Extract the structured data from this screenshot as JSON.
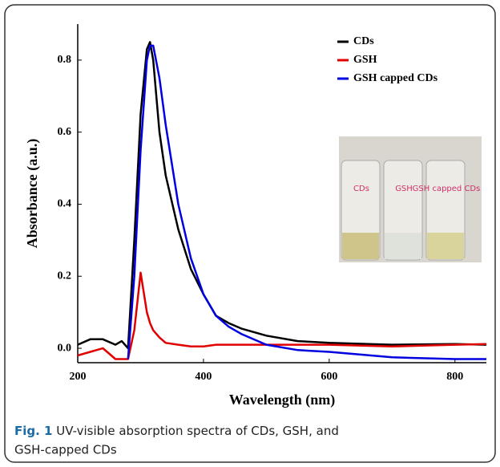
{
  "chart_data": {
    "type": "line",
    "xlabel": "Wavelength (nm)",
    "ylabel": "Absorbance (a.u.)",
    "caption_label": "Fig. 1",
    "caption_text_1": "UV-visible absorption spectra of CDs, GSH, and",
    "caption_text_2": "GSH-capped CDs",
    "x": [
      200,
      220,
      240,
      260,
      270,
      280,
      290,
      300,
      310,
      315,
      320,
      330,
      340,
      360,
      380,
      400,
      420,
      440,
      460,
      500,
      550,
      600,
      700,
      800,
      850
    ],
    "series": [
      {
        "name": "CDs",
        "color": "#000000",
        "values": [
          0.01,
          0.025,
          0.025,
          0.01,
          0.02,
          0.0,
          0.3,
          0.65,
          0.83,
          0.85,
          0.8,
          0.6,
          0.48,
          0.33,
          0.22,
          0.15,
          0.09,
          0.07,
          0.055,
          0.035,
          0.02,
          0.015,
          0.01,
          0.012,
          0.01
        ]
      },
      {
        "name": "GSH",
        "color": "#e00000",
        "values": [
          -0.02,
          -0.01,
          0.0,
          -0.03,
          -0.03,
          -0.03,
          0.05,
          0.21,
          0.1,
          0.07,
          0.05,
          0.03,
          0.015,
          0.01,
          0.005,
          0.005,
          0.01,
          0.01,
          0.01,
          0.01,
          0.01,
          0.01,
          0.005,
          0.01,
          0.012
        ]
      },
      {
        "name": "GSH capped CDs",
        "color": "#0000e0",
        "values": [
          null,
          null,
          null,
          null,
          null,
          -0.03,
          0.2,
          0.55,
          0.8,
          0.84,
          0.84,
          0.75,
          0.62,
          0.4,
          0.25,
          0.15,
          0.09,
          0.06,
          0.04,
          0.01,
          -0.005,
          -0.01,
          -0.025,
          -0.03,
          -0.03
        ]
      }
    ],
    "inset_labels": [
      "CDs",
      "GSH",
      "GSH capped CDs"
    ],
    "xlim": [
      200,
      850
    ],
    "xticks": [
      200,
      400,
      600,
      800
    ],
    "ylim": [
      -0.04,
      0.9
    ],
    "yticks": [
      {
        "value": 0,
        "label": "0.0"
      },
      0.2,
      0.4,
      0.6,
      0.8
    ],
    "legend": "upper right"
  }
}
